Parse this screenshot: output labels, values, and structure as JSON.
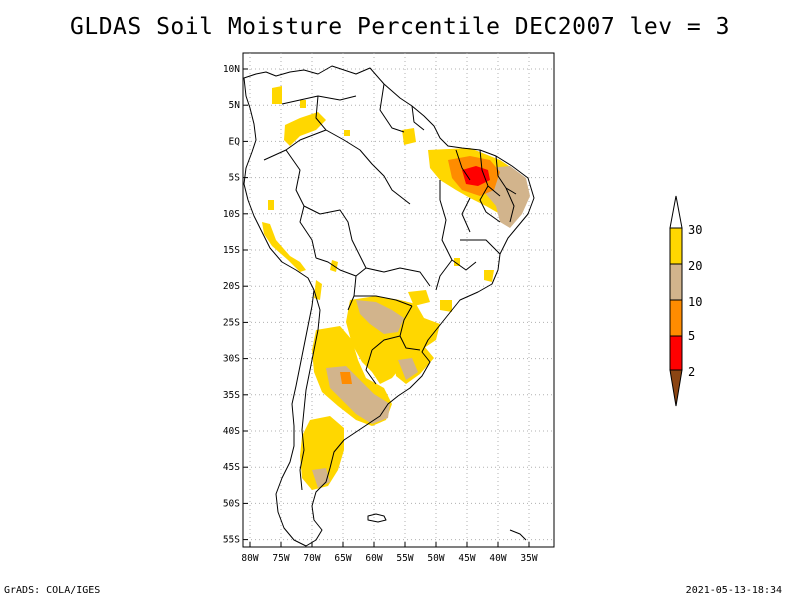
{
  "title": "GLDAS Soil Moisture Percentile DEC2007 lev = 3",
  "footer": {
    "left": "GrADS: COLA/IGES",
    "right": "2021-05-13-18:34"
  },
  "axes": {
    "lat_labels": [
      "10N",
      "5N",
      "EQ",
      "5S",
      "10S",
      "15S",
      "20S",
      "25S",
      "30S",
      "35S",
      "40S",
      "45S",
      "50S",
      "55S"
    ],
    "lon_labels": [
      "80W",
      "75W",
      "70W",
      "65W",
      "60W",
      "55W",
      "50W",
      "45W",
      "40W",
      "35W"
    ],
    "lat_values": [
      10,
      5,
      0,
      -5,
      -10,
      -15,
      -20,
      -25,
      -30,
      -35,
      -40,
      -45,
      -50,
      -55
    ],
    "lon_values": [
      -80,
      -75,
      -70,
      -65,
      -60,
      -55,
      -50,
      -45,
      -40,
      -35
    ]
  },
  "colorbar": {
    "labels": [
      "30",
      "20",
      "10",
      "5",
      "2"
    ],
    "colors": {
      "gt30": "#ffffff",
      "c20_30": "#ffd700",
      "c10_20": "#d2b48c",
      "c5_10": "#ff8c00",
      "c2_5": "#ff0000",
      "lt2": "#8b4513"
    }
  }
}
